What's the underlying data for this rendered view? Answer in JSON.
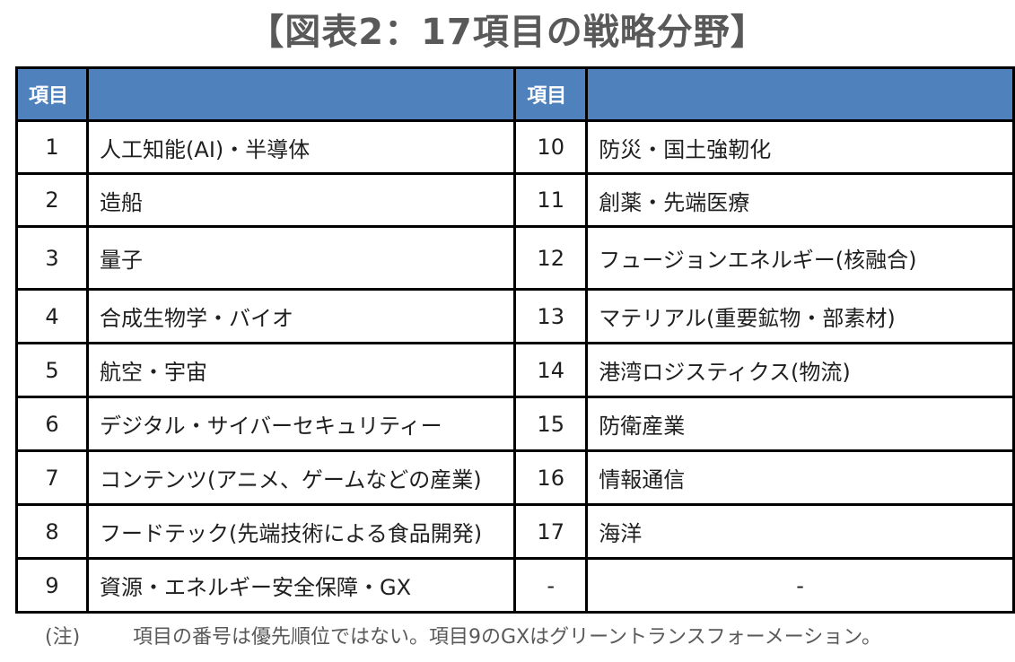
{
  "title": "【図表2：17項目の戦略分野】",
  "header": {
    "col1": "項目",
    "col2": "",
    "col3": "項目",
    "col4": ""
  },
  "rows": [
    {
      "n1": "1",
      "name1": "人工知能(AI)・半導体",
      "n2": "10",
      "name2": "防災・国土強靭化"
    },
    {
      "n1": "2",
      "name1": "造船",
      "n2": "11",
      "name2": "創薬・先端医療"
    },
    {
      "n1": "3",
      "name1": "量子",
      "n2": "12",
      "name2": "フュージョンエネルギー(核融合)"
    },
    {
      "n1": "4",
      "name1": "合成生物学・バイオ",
      "n2": "13",
      "name2": "マテリアル(重要鉱物・部素材)"
    },
    {
      "n1": "5",
      "name1": "航空・宇宙",
      "n2": "14",
      "name2": "港湾ロジスティクス(物流)"
    },
    {
      "n1": "6",
      "name1": "デジタル・サイバーセキュリティー",
      "n2": "15",
      "name2": "防衛産業"
    },
    {
      "n1": "7",
      "name1": "コンテンツ(アニメ、ゲームなどの産業)",
      "n2": "16",
      "name2": "情報通信"
    },
    {
      "n1": "8",
      "name1": "フードテック(先端技術による食品開発)",
      "n2": "17",
      "name2": "海洋"
    },
    {
      "n1": "9",
      "name1": "資源・エネルギー安全保障・GX",
      "n2": "-",
      "name2": "-"
    }
  ],
  "note": {
    "label": "(注)",
    "text": "項目の番号は優先順位ではない。項目9のGXはグリーントランスフォーメーション。"
  },
  "colors": {
    "header_bg": "#4f81bd",
    "header_text": "#ffffff",
    "title_text": "#595959"
  }
}
